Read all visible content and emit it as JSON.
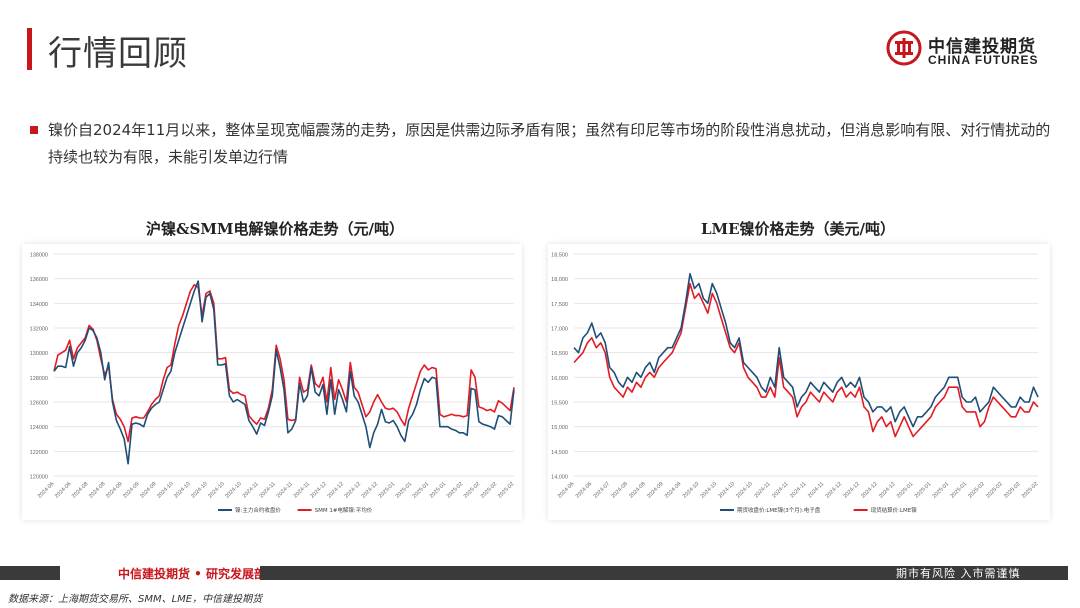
{
  "header": {
    "title": "行情回顾",
    "logo_cn": "中信建投期货",
    "logo_en": "CHINA FUTURES"
  },
  "summary": {
    "text": "镍价自2024年11月以来，整体呈现宽幅震荡的走势，原因是供需边际矛盾有限；虽然有印尼等市场的阶段性消息扰动，但消息影响有限、对行情扰动的持续也较为有限，未能引发单边行情"
  },
  "footer": {
    "dept": "中信建投期货 • 研究发展部",
    "slogan": "期市有风险  入市需谨慎",
    "source": "数据来源：上海期货交易所、SMM、LME，中信建投期货"
  },
  "colors": {
    "accent": "#c8161d",
    "blue": "#1f4e79",
    "red": "#e31b23"
  },
  "chart_data": [
    {
      "type": "line",
      "title": "沪镍&SMM电解镍价格走势（元/吨）",
      "ylim": [
        120000,
        138000
      ],
      "yticks": [
        120000,
        122000,
        124000,
        126000,
        128000,
        130000,
        132000,
        134000,
        136000,
        138000
      ],
      "ytick_labels": [
        "120000",
        "122000",
        "124000",
        "126000",
        "128000",
        "130000",
        "132000",
        "134000",
        "136000",
        "138000"
      ],
      "xtick_labels": [
        "2024-06",
        "2024-06",
        "2024-08",
        "2024-08",
        "2024-09",
        "2024-09",
        "2024-09",
        "2024-10",
        "2024-10",
        "2024-10",
        "2024-10",
        "2024-10",
        "2024-11",
        "2024-11",
        "2024-11",
        "2024-11",
        "2024-12",
        "2024-12",
        "2024-12",
        "2024-12",
        "2025-01",
        "2025-01",
        "2025-01",
        "2025-01",
        "2025-02",
        "2025-02",
        "2025-02",
        "2025-02"
      ],
      "series": [
        {
          "name": "镍:主力合约收盘价",
          "color": "#1f4e79",
          "values": [
            128500,
            128900,
            128900,
            128800,
            130500,
            128900,
            130000,
            130400,
            131000,
            132000,
            131800,
            131200,
            130000,
            127800,
            129200,
            126000,
            124500,
            123800,
            123000,
            121000,
            124200,
            124300,
            124200,
            124000,
            125000,
            125500,
            125800,
            126000,
            127000,
            128000,
            128500,
            130000,
            131000,
            132000,
            133000,
            134000,
            135000,
            135800,
            132500,
            134500,
            134800,
            133500,
            129000,
            129000,
            129100,
            126500,
            126000,
            126200,
            126000,
            125800,
            124500,
            124000,
            123400,
            124300,
            124100,
            125200,
            126500,
            130200,
            128800,
            127000,
            123500,
            123800,
            124500,
            127500,
            126000,
            126500,
            128800,
            126800,
            126500,
            127400,
            125000,
            127800,
            125000,
            127000,
            126200,
            125200,
            128500,
            126500,
            126000,
            125000,
            124000,
            122300,
            123500,
            124200,
            125400,
            124400,
            124300,
            124500,
            124000,
            123300,
            122800,
            124500,
            125000,
            125800,
            127000,
            127900,
            127600,
            128000,
            127900,
            124000,
            124000,
            124000,
            123800,
            123700,
            123500,
            123500,
            123300,
            127100,
            127000,
            124400,
            124200,
            124100,
            124000,
            123800,
            124900,
            124800,
            124500,
            124200,
            127000
          ]
        },
        {
          "name": "SMM 1#电解镍:平均价",
          "color": "#e31b23",
          "values": [
            128500,
            129800,
            130000,
            130200,
            131000,
            129500,
            130400,
            130800,
            131200,
            132200,
            131900,
            131000,
            129500,
            128200,
            128900,
            126200,
            125000,
            124600,
            124000,
            122800,
            124700,
            124800,
            124700,
            124700,
            125200,
            125800,
            126200,
            126500,
            127800,
            128800,
            129000,
            130700,
            132200,
            133000,
            134000,
            135000,
            135500,
            135300,
            133000,
            134800,
            135000,
            134000,
            129500,
            129500,
            129600,
            127000,
            126700,
            126800,
            126600,
            126500,
            124900,
            124500,
            124200,
            124700,
            124600,
            125500,
            127000,
            130600,
            129500,
            127800,
            124600,
            124500,
            124600,
            128000,
            126800,
            127000,
            129000,
            127500,
            127200,
            128000,
            126000,
            128800,
            126200,
            127800,
            127000,
            126000,
            129200,
            127200,
            126800,
            125800,
            124800,
            125200,
            126000,
            126600,
            126000,
            125500,
            125400,
            125500,
            125200,
            124600,
            124100,
            125500,
            126500,
            127500,
            128500,
            129000,
            128600,
            128800,
            128700,
            125000,
            124800,
            124900,
            125000,
            124900,
            124900,
            124800,
            124900,
            128600,
            128000,
            125600,
            125500,
            125300,
            125400,
            125200,
            126100,
            125900,
            125600,
            125300,
            127200
          ]
        }
      ]
    },
    {
      "type": "line",
      "title": "LME镍价格走势（美元/吨）",
      "ylim": [
        14000,
        18500
      ],
      "yticks": [
        14000,
        14500,
        15000,
        15500,
        16000,
        16500,
        17000,
        17500,
        18000,
        18500
      ],
      "ytick_labels": [
        "14,000",
        "14,500",
        "15,000",
        "15,500",
        "16,000",
        "16,500",
        "17,000",
        "17,500",
        "18,000",
        "18,500"
      ],
      "xtick_labels": [
        "2024-06",
        "2024-06",
        "2024-07",
        "2024-08",
        "2024-08",
        "2024-09",
        "2024-09",
        "2024-10",
        "2024-10",
        "2024-10",
        "2024-10",
        "2024-11",
        "2024-11",
        "2024-11",
        "2024-11",
        "2024-12",
        "2024-12",
        "2024-12",
        "2024-12",
        "2025-01",
        "2025-01",
        "2025-01",
        "2025-01",
        "2025-02",
        "2025-02",
        "2025-02",
        "2025-02"
      ],
      "series": [
        {
          "name": "期货收盘价:LME镍(3个月):电子盘",
          "color": "#1f4e79",
          "values": [
            16600,
            16500,
            16800,
            16900,
            17100,
            16800,
            16900,
            16700,
            16200,
            16100,
            15900,
            15800,
            16000,
            15900,
            16100,
            16000,
            16200,
            16300,
            16100,
            16400,
            16500,
            16600,
            16600,
            16800,
            17000,
            17500,
            18100,
            17800,
            17900,
            17600,
            17500,
            17900,
            17700,
            17400,
            17100,
            16700,
            16600,
            16800,
            16300,
            16200,
            16100,
            16000,
            15800,
            15700,
            16000,
            15800,
            16600,
            16000,
            15900,
            15800,
            15400,
            15600,
            15700,
            15900,
            15800,
            15700,
            15900,
            15800,
            15700,
            15900,
            16000,
            15800,
            15900,
            15800,
            16000,
            15600,
            15500,
            15300,
            15400,
            15400,
            15300,
            15400,
            15100,
            15300,
            15400,
            15200,
            15000,
            15200,
            15200,
            15300,
            15400,
            15600,
            15700,
            15800,
            16000,
            16000,
            16000,
            15600,
            15500,
            15500,
            15600,
            15300,
            15400,
            15500,
            15800,
            15700,
            15600,
            15500,
            15400,
            15400,
            15600,
            15500,
            15500,
            15800,
            15600
          ]
        },
        {
          "name": "现货结算价:LME镍",
          "color": "#e31b23",
          "values": [
            16300,
            16400,
            16500,
            16700,
            16800,
            16600,
            16700,
            16500,
            16000,
            15800,
            15700,
            15600,
            15800,
            15700,
            15900,
            15800,
            16000,
            16100,
            16000,
            16200,
            16300,
            16400,
            16500,
            16700,
            16900,
            17400,
            17900,
            17600,
            17700,
            17500,
            17300,
            17700,
            17500,
            17200,
            16900,
            16600,
            16500,
            16700,
            16200,
            16000,
            15900,
            15800,
            15600,
            15600,
            15800,
            15600,
            16400,
            15800,
            15700,
            15600,
            15200,
            15400,
            15500,
            15700,
            15600,
            15500,
            15700,
            15600,
            15500,
            15700,
            15800,
            15600,
            15700,
            15600,
            15800,
            15400,
            15300,
            14900,
            15100,
            15200,
            15000,
            15100,
            14800,
            15000,
            15200,
            15000,
            14800,
            14900,
            15000,
            15100,
            15200,
            15400,
            15500,
            15600,
            15800,
            15800,
            15800,
            15400,
            15300,
            15300,
            15300,
            15000,
            15100,
            15400,
            15600,
            15500,
            15400,
            15300,
            15200,
            15200,
            15400,
            15300,
            15300,
            15500,
            15400
          ]
        }
      ]
    }
  ]
}
